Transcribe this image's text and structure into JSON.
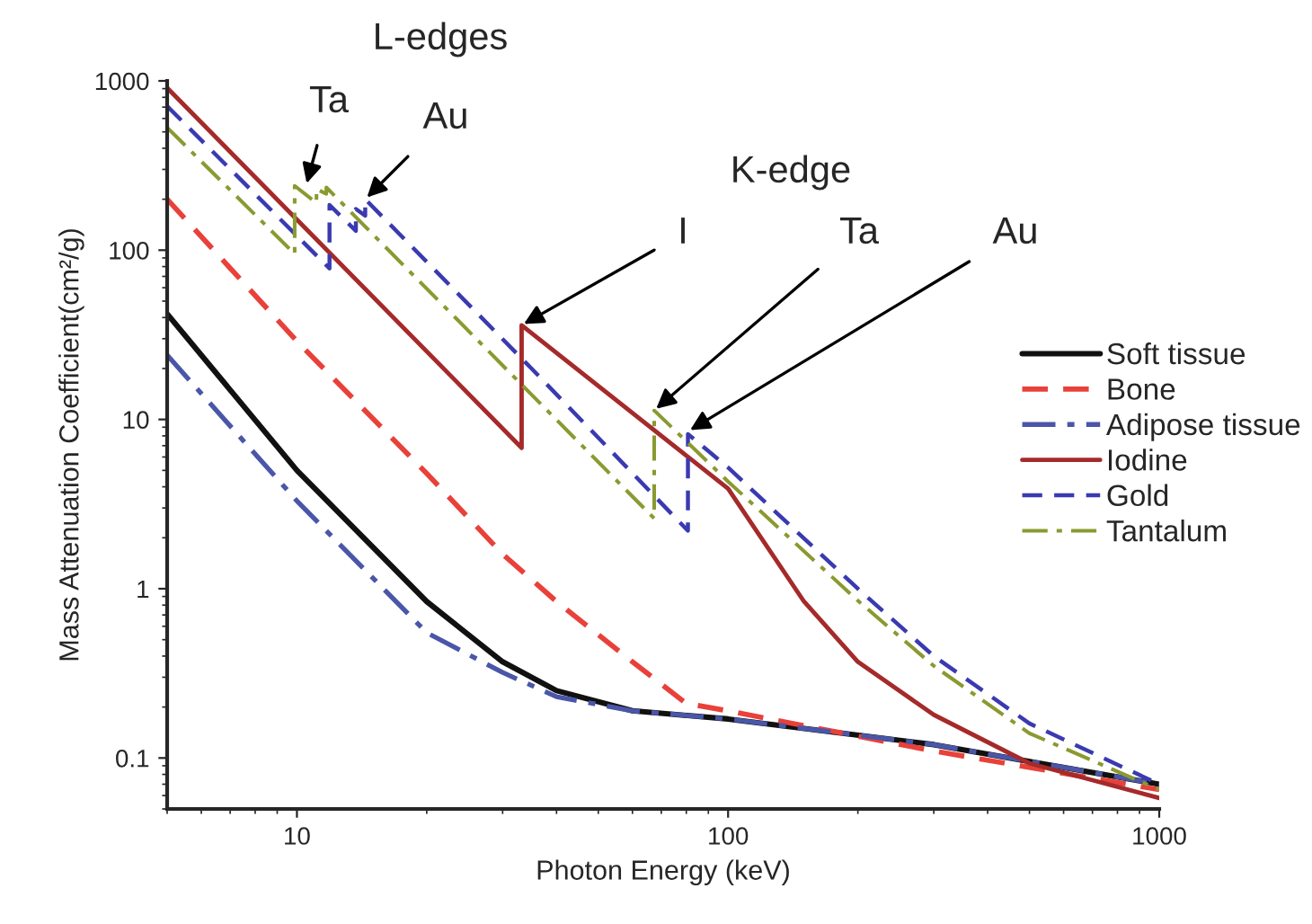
{
  "chart_data": {
    "type": "line",
    "log": "xy",
    "xlabel": "Photon Energy (keV)",
    "ylabel": "Mass Attenuation Coefficient(cm²/g)",
    "xlim": [
      5,
      1000
    ],
    "ylim": [
      0.05,
      1000
    ],
    "xticks": [
      10,
      100,
      1000
    ],
    "yticks": [
      0.1,
      1,
      10,
      100,
      1000
    ],
    "legend": "right",
    "grid": false,
    "series": [
      {
        "name": "Soft tissue",
        "color": "#111111",
        "line_style": "solid",
        "x": [
          5,
          10,
          20,
          30,
          40,
          60,
          100,
          300,
          1000
        ],
        "values": [
          42,
          5.0,
          0.84,
          0.37,
          0.25,
          0.19,
          0.17,
          0.12,
          0.07
        ]
      },
      {
        "name": "Bone",
        "color": "#e8413a",
        "line_style": "dashed",
        "x": [
          5,
          10,
          20,
          30,
          40,
          60,
          80,
          100,
          300,
          1000
        ],
        "values": [
          200,
          29,
          4.8,
          1.6,
          0.84,
          0.37,
          0.21,
          0.19,
          0.11,
          0.065
        ]
      },
      {
        "name": "Adipose tissue",
        "color": "#4a56a8",
        "line_style": "dashdot",
        "x": [
          5,
          10,
          20,
          30,
          40,
          60,
          100,
          300,
          1000
        ],
        "values": [
          24,
          3.3,
          0.55,
          0.32,
          0.23,
          0.19,
          0.17,
          0.12,
          0.07
        ]
      },
      {
        "name": "Iodine",
        "color": "#a52a2a",
        "line_style": "solid",
        "x": [
          5,
          33.2,
          33.2,
          100,
          150,
          200,
          300,
          500,
          1000
        ],
        "values": [
          910,
          6.8,
          36,
          3.9,
          0.84,
          0.37,
          0.18,
          0.093,
          0.058
        ]
      },
      {
        "name": "Gold",
        "color": "#3a3ab0",
        "line_style": "dashed",
        "x": [
          5,
          11.9,
          11.9,
          13.7,
          13.7,
          14.4,
          14.4,
          35,
          80.7,
          80.7,
          100,
          200,
          300,
          500,
          1000
        ],
        "values": [
          710,
          78,
          185,
          130,
          175,
          160,
          200,
          20,
          2.2,
          8.2,
          5.2,
          1.0,
          0.4,
          0.16,
          0.07
        ]
      },
      {
        "name": "Tantalum",
        "color": "#8a9a30",
        "line_style": "dashdot",
        "x": [
          5,
          9.88,
          9.88,
          11.1,
          11.1,
          11.7,
          11.7,
          67.4,
          67.4,
          100,
          200,
          300,
          500,
          1000
        ],
        "values": [
          530,
          95,
          240,
          190,
          230,
          215,
          235,
          2.6,
          11.3,
          4.3,
          0.85,
          0.35,
          0.14,
          0.065
        ]
      }
    ],
    "annotations": [
      "L-edges",
      {
        "text": "Ta",
        "x": 10.5,
        "y": 240
      },
      {
        "text": "Au",
        "x": 14.4,
        "y": 200
      },
      "K-edge",
      {
        "text": "I",
        "x": 33.2,
        "y": 36
      },
      {
        "text": "Ta",
        "x": 67.4,
        "y": 11.3
      },
      {
        "text": "Au",
        "x": 80.7,
        "y": 8.5
      }
    ]
  }
}
